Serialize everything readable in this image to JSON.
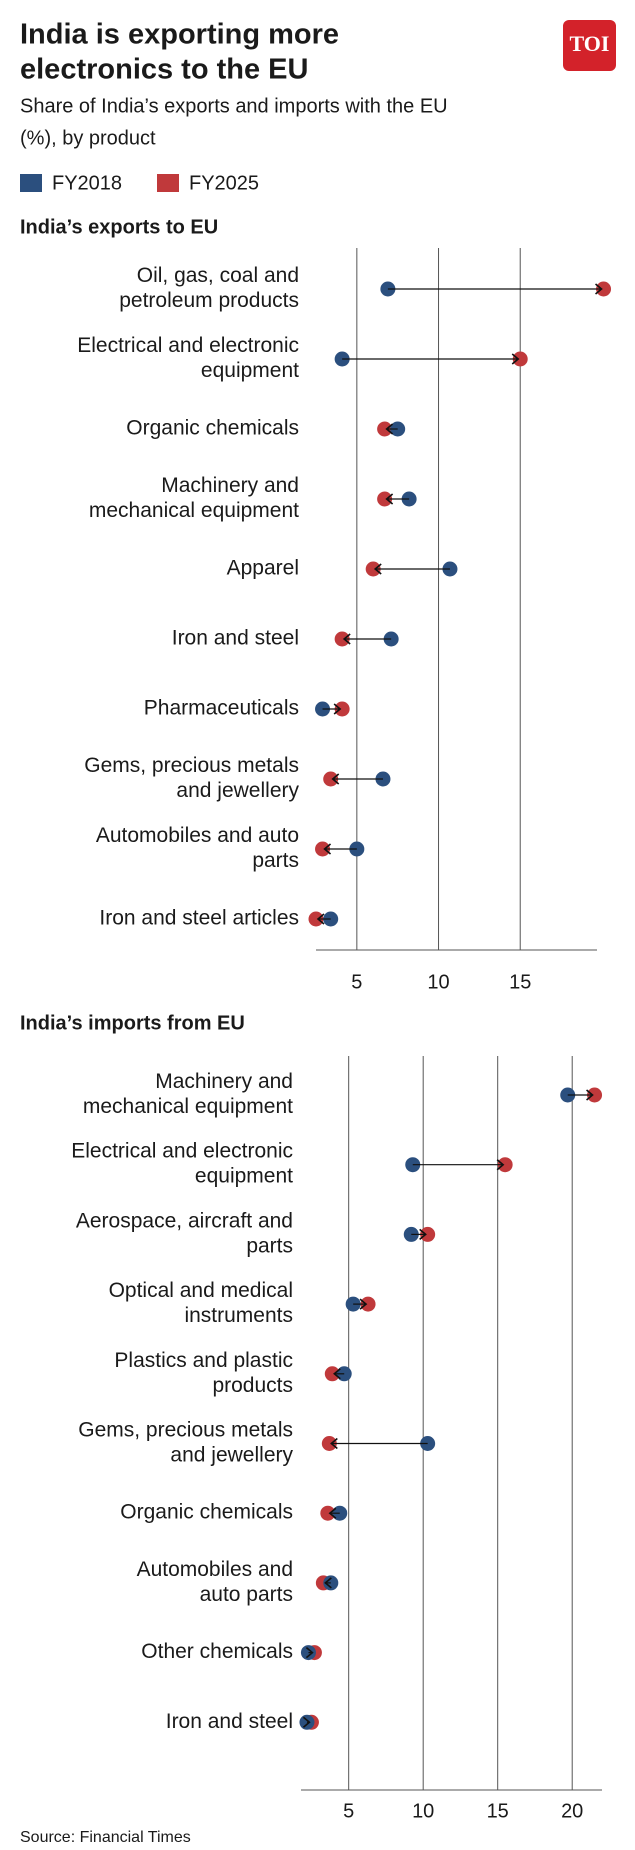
{
  "header": {
    "title": [
      "India is exporting more",
      "electronics to the EU"
    ],
    "subtitle": [
      "Share of India’s exports and imports with the EU",
      "(%), by product"
    ],
    "logo": "TOI"
  },
  "chart_data": [
    {
      "type": "dumbbell",
      "title": "India’s exports to EU",
      "categories": [
        [
          "Oil, gas, coal and",
          "petroleum products"
        ],
        [
          "Electrical and electronic",
          "equipment"
        ],
        [
          "Organic chemicals"
        ],
        [
          "Machinery and",
          "mechanical equipment"
        ],
        [
          "Apparel"
        ],
        [
          "Iron and steel"
        ],
        [
          "Pharmaceuticals"
        ],
        [
          "Gems, precious metals",
          "and jewellery"
        ],
        [
          "Automobiles and auto",
          "parts"
        ],
        [
          "Iron and steel articles"
        ]
      ],
      "series": [
        {
          "name": "FY2018",
          "color": "#2b4f7e",
          "values": [
            6.9,
            4.1,
            7.5,
            8.2,
            10.7,
            7.1,
            2.9,
            6.6,
            5.0,
            3.4
          ]
        },
        {
          "name": "FY2025",
          "color": "#c0393b",
          "values": [
            20.1,
            15.0,
            6.7,
            6.7,
            6.0,
            4.1,
            4.1,
            3.4,
            2.9,
            2.5
          ]
        }
      ],
      "xlim": [
        2.5,
        19.7
      ],
      "xticks": [
        5,
        10,
        15
      ],
      "grid": true
    },
    {
      "type": "dumbbell",
      "title": "India’s imports from EU",
      "categories": [
        [
          "Machinery and",
          "mechanical equipment"
        ],
        [
          "Electrical and electronic",
          "equipment"
        ],
        [
          "Aerospace, aircraft and",
          "parts"
        ],
        [
          "Optical and medical",
          "instruments"
        ],
        [
          "Plastics and plastic",
          "products"
        ],
        [
          "Gems, precious metals",
          "and jewellery"
        ],
        [
          "Organic chemicals"
        ],
        [
          "Automobiles and",
          "auto parts"
        ],
        [
          "Other chemicals"
        ],
        [
          "Iron and steel"
        ]
      ],
      "series": [
        {
          "color": "#2b4f7e",
          "values": [
            19.7,
            9.3,
            9.2,
            5.3,
            4.7,
            10.3,
            4.4,
            3.8,
            2.3,
            2.2
          ]
        },
        {
          "color": "#c0393b",
          "values": [
            21.5,
            15.5,
            10.3,
            6.3,
            3.9,
            3.7,
            3.6,
            3.3,
            2.7,
            2.5
          ]
        }
      ],
      "xlim": [
        1.8,
        22
      ],
      "xticks": [
        5,
        10,
        15,
        20
      ],
      "grid": true
    }
  ],
  "source": "Source: Financial Times"
}
